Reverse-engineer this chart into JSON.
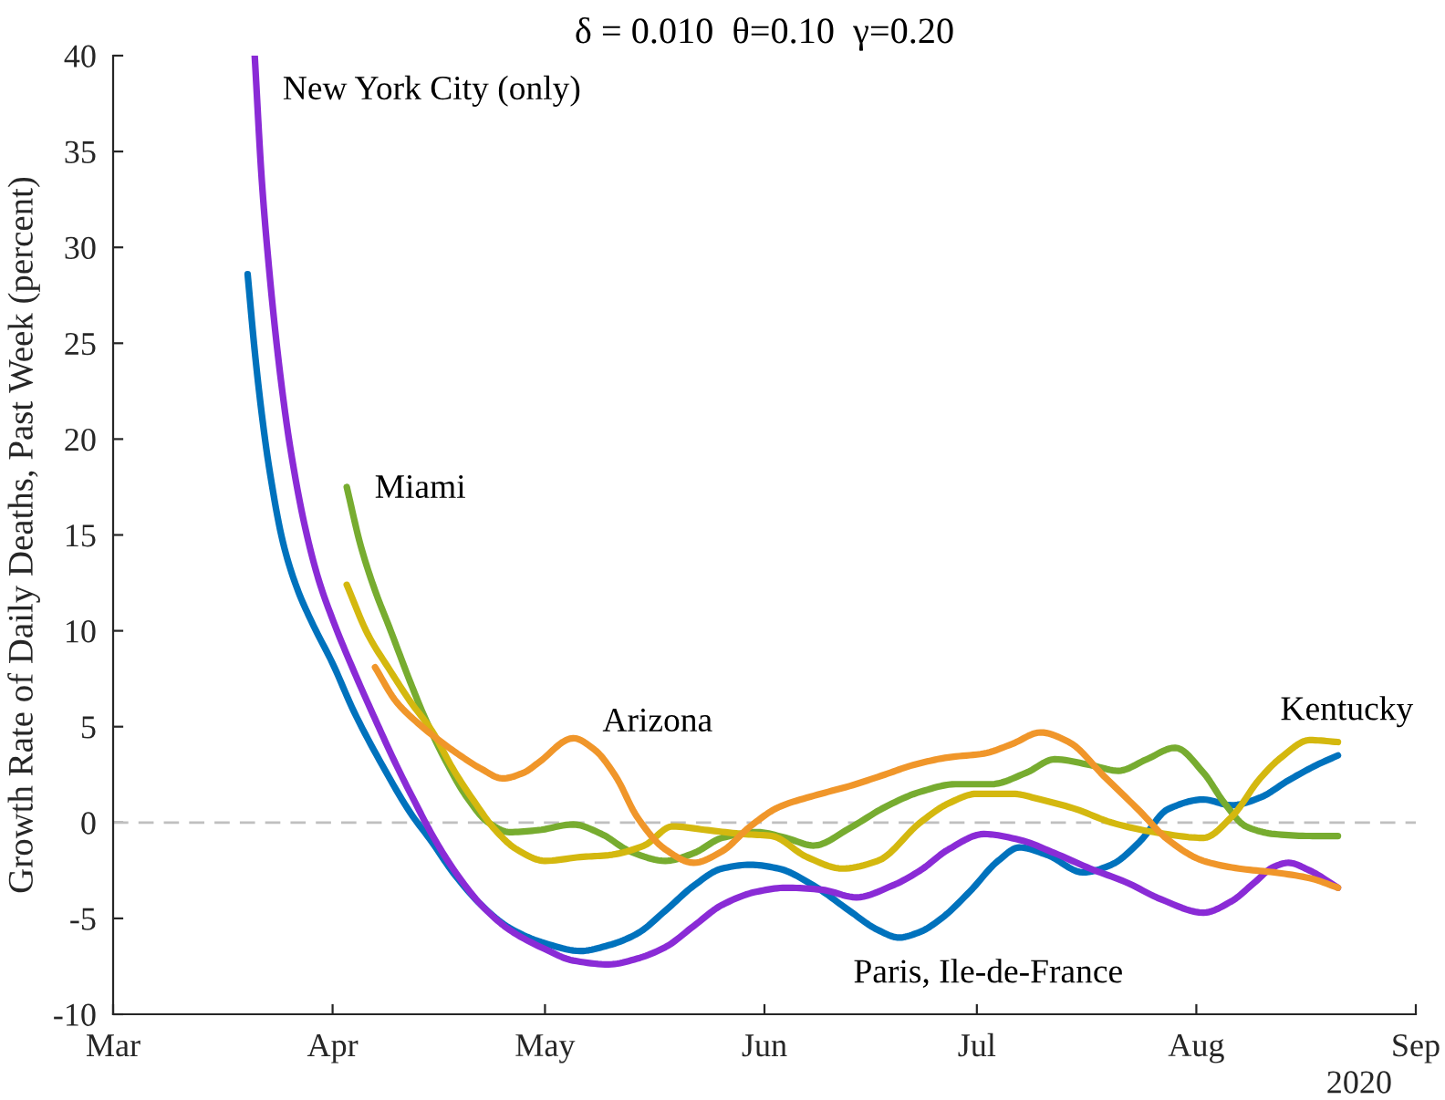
{
  "chart_data": {
    "type": "line",
    "title": "δ = 0.010  θ=0.10  γ=0.20",
    "ylabel": "Growth Rate of Daily Deaths, Past Week (percent)",
    "annotations": [
      "2020"
    ],
    "xlim": [
      "2020-03-01",
      "2020-09-01"
    ],
    "ylim": [
      -10,
      40
    ],
    "xticks": [
      {
        "value": "2020-03-01",
        "label": "Mar"
      },
      {
        "value": "2020-04-01",
        "label": "Apr"
      },
      {
        "value": "2020-05-01",
        "label": "May"
      },
      {
        "value": "2020-06-01",
        "label": "Jun"
      },
      {
        "value": "2020-07-01",
        "label": "Jul"
      },
      {
        "value": "2020-08-01",
        "label": "Aug"
      },
      {
        "value": "2020-09-01",
        "label": "Sep"
      }
    ],
    "yticks": [
      -10,
      -5,
      0,
      5,
      10,
      15,
      20,
      25,
      30,
      35,
      40
    ],
    "ref_lines": [
      {
        "axis": "y",
        "value": 0,
        "color": "#bfbfbf",
        "line_style": "dashed"
      }
    ],
    "series": [
      {
        "name": "Paris, Ile-de-France",
        "color": "#0072bd",
        "x": [
          "2020-03-20",
          "2020-03-21",
          "2020-03-22",
          "2020-03-23",
          "2020-03-25",
          "2020-03-27",
          "2020-03-29",
          "2020-04-01",
          "2020-04-04",
          "2020-04-08",
          "2020-04-12",
          "2020-04-15",
          "2020-04-18",
          "2020-04-22",
          "2020-04-26",
          "2020-05-01",
          "2020-05-06",
          "2020-05-10",
          "2020-05-14",
          "2020-05-18",
          "2020-05-22",
          "2020-05-26",
          "2020-05-30",
          "2020-06-03",
          "2020-06-08",
          "2020-06-13",
          "2020-06-17",
          "2020-06-20",
          "2020-06-23",
          "2020-06-26",
          "2020-06-30",
          "2020-07-04",
          "2020-07-07",
          "2020-07-11",
          "2020-07-16",
          "2020-07-20",
          "2020-07-24",
          "2020-07-28",
          "2020-08-02",
          "2020-08-06",
          "2020-08-10",
          "2020-08-14",
          "2020-08-18",
          "2020-08-21"
        ],
        "values": [
          28.6,
          24.6,
          21.3,
          18.6,
          14.6,
          12.2,
          10.5,
          8.3,
          5.8,
          3,
          0.5,
          -1,
          -2.6,
          -4.3,
          -5.5,
          -6.3,
          -6.7,
          -6.4,
          -5.8,
          -4.6,
          -3.3,
          -2.4,
          -2.2,
          -2.4,
          -3.3,
          -4.6,
          -5.6,
          -6,
          -5.7,
          -5,
          -3.6,
          -2,
          -1.3,
          -1.7,
          -2.6,
          -2.2,
          -1,
          0.7,
          1.2,
          0.9,
          1.3,
          2.2,
          3,
          3.5
        ]
      },
      {
        "name": "New York City (only)",
        "color": "#8a2bd6",
        "x": [
          "2020-03-21",
          "2020-03-22",
          "2020-03-23",
          "2020-03-24",
          "2020-03-25",
          "2020-03-26",
          "2020-03-28",
          "2020-03-30",
          "2020-04-01",
          "2020-04-04",
          "2020-04-07",
          "2020-04-10",
          "2020-04-13",
          "2020-04-15",
          "2020-04-18",
          "2020-04-22",
          "2020-04-26",
          "2020-05-01",
          "2020-05-05",
          "2020-05-10",
          "2020-05-14",
          "2020-05-18",
          "2020-05-22",
          "2020-05-26",
          "2020-05-31",
          "2020-06-04",
          "2020-06-09",
          "2020-06-14",
          "2020-06-19",
          "2020-06-23",
          "2020-06-27",
          "2020-07-02",
          "2020-07-07",
          "2020-07-12",
          "2020-07-17",
          "2020-07-22",
          "2020-07-27",
          "2020-08-02",
          "2020-08-06",
          "2020-08-09",
          "2020-08-12",
          "2020-08-14",
          "2020-08-17",
          "2020-08-21"
        ],
        "values": [
          40,
          33.5,
          29,
          25.3,
          22.2,
          19.6,
          15.6,
          12.7,
          10.6,
          7.9,
          5.4,
          3,
          0.8,
          -0.6,
          -2.4,
          -4.3,
          -5.6,
          -6.6,
          -7.2,
          -7.4,
          -7.1,
          -6.5,
          -5.4,
          -4.3,
          -3.6,
          -3.4,
          -3.5,
          -3.9,
          -3.3,
          -2.5,
          -1.4,
          -0.6,
          -0.9,
          -1.6,
          -2.4,
          -3.1,
          -4,
          -4.7,
          -4.1,
          -3.2,
          -2.3,
          -2.1,
          -2.5,
          -3.4
        ]
      },
      {
        "name": "Miami",
        "color": "#77ac30",
        "x": [
          "2020-04-03",
          "2020-04-05",
          "2020-04-07",
          "2020-04-09",
          "2020-04-12",
          "2020-04-14",
          "2020-04-17",
          "2020-04-20",
          "2020-04-23",
          "2020-04-26",
          "2020-04-30",
          "2020-05-05",
          "2020-05-09",
          "2020-05-13",
          "2020-05-18",
          "2020-05-22",
          "2020-05-26",
          "2020-05-31",
          "2020-06-04",
          "2020-06-08",
          "2020-06-13",
          "2020-06-18",
          "2020-06-23",
          "2020-06-28",
          "2020-07-03",
          "2020-07-08",
          "2020-07-12",
          "2020-07-17",
          "2020-07-21",
          "2020-07-25",
          "2020-07-29",
          "2020-08-02",
          "2020-08-05",
          "2020-08-08",
          "2020-08-12",
          "2020-08-17",
          "2020-08-21"
        ],
        "values": [
          17.5,
          14.4,
          12.1,
          10.2,
          7.3,
          5.5,
          3.2,
          1.3,
          0,
          -0.5,
          -0.4,
          -0.1,
          -0.6,
          -1.5,
          -2,
          -1.6,
          -0.8,
          -0.5,
          -0.8,
          -1.2,
          -0.3,
          0.8,
          1.6,
          2,
          2,
          2.6,
          3.3,
          3,
          2.7,
          3.3,
          3.9,
          2.6,
          1,
          -0.2,
          -0.6,
          -0.7,
          -0.7
        ]
      },
      {
        "name": "Kentucky",
        "color": "#d4b80f",
        "x": [
          "2020-04-03",
          "2020-04-06",
          "2020-04-09",
          "2020-04-12",
          "2020-04-15",
          "2020-04-18",
          "2020-04-21",
          "2020-04-24",
          "2020-04-27",
          "2020-05-01",
          "2020-05-06",
          "2020-05-10",
          "2020-05-15",
          "2020-05-19",
          "2020-05-24",
          "2020-05-29",
          "2020-06-02",
          "2020-06-07",
          "2020-06-12",
          "2020-06-17",
          "2020-06-23",
          "2020-06-27",
          "2020-07-01",
          "2020-07-06",
          "2020-07-10",
          "2020-07-15",
          "2020-07-20",
          "2020-07-26",
          "2020-08-02",
          "2020-08-06",
          "2020-08-10",
          "2020-08-13",
          "2020-08-17",
          "2020-08-21"
        ],
        "values": [
          12.4,
          9.8,
          8,
          6.3,
          4.8,
          2.8,
          1.1,
          -0.4,
          -1.4,
          -2,
          -1.8,
          -1.7,
          -1.2,
          -0.2,
          -0.4,
          -0.6,
          -0.7,
          -1.8,
          -2.4,
          -2,
          0,
          1,
          1.5,
          1.5,
          1.2,
          0.7,
          0,
          -0.5,
          -0.8,
          0.3,
          2.3,
          3.4,
          4.3,
          4.2
        ]
      },
      {
        "name": "Arizona",
        "color": "#f0962a",
        "x": [
          "2020-04-07",
          "2020-04-10",
          "2020-04-13",
          "2020-04-16",
          "2020-04-19",
          "2020-04-22",
          "2020-04-25",
          "2020-04-28",
          "2020-04-30",
          "2020-05-05",
          "2020-05-08",
          "2020-05-11",
          "2020-05-14",
          "2020-05-18",
          "2020-05-22",
          "2020-05-26",
          "2020-05-30",
          "2020-06-03",
          "2020-06-08",
          "2020-06-13",
          "2020-06-18",
          "2020-06-22",
          "2020-06-27",
          "2020-07-02",
          "2020-07-06",
          "2020-07-10",
          "2020-07-14",
          "2020-07-19",
          "2020-07-24",
          "2020-07-28",
          "2020-08-02",
          "2020-08-07",
          "2020-08-12",
          "2020-08-17",
          "2020-08-21"
        ],
        "values": [
          8.1,
          6.3,
          5.2,
          4.3,
          3.5,
          2.8,
          2.3,
          2.6,
          3.1,
          4.4,
          3.8,
          2.4,
          0.3,
          -1.4,
          -2.1,
          -1.5,
          -0.2,
          0.8,
          1.4,
          1.9,
          2.5,
          3,
          3.4,
          3.6,
          4.1,
          4.7,
          4.2,
          2.4,
          0.6,
          -0.9,
          -2,
          -2.4,
          -2.6,
          -2.9,
          -3.4
        ]
      }
    ]
  }
}
